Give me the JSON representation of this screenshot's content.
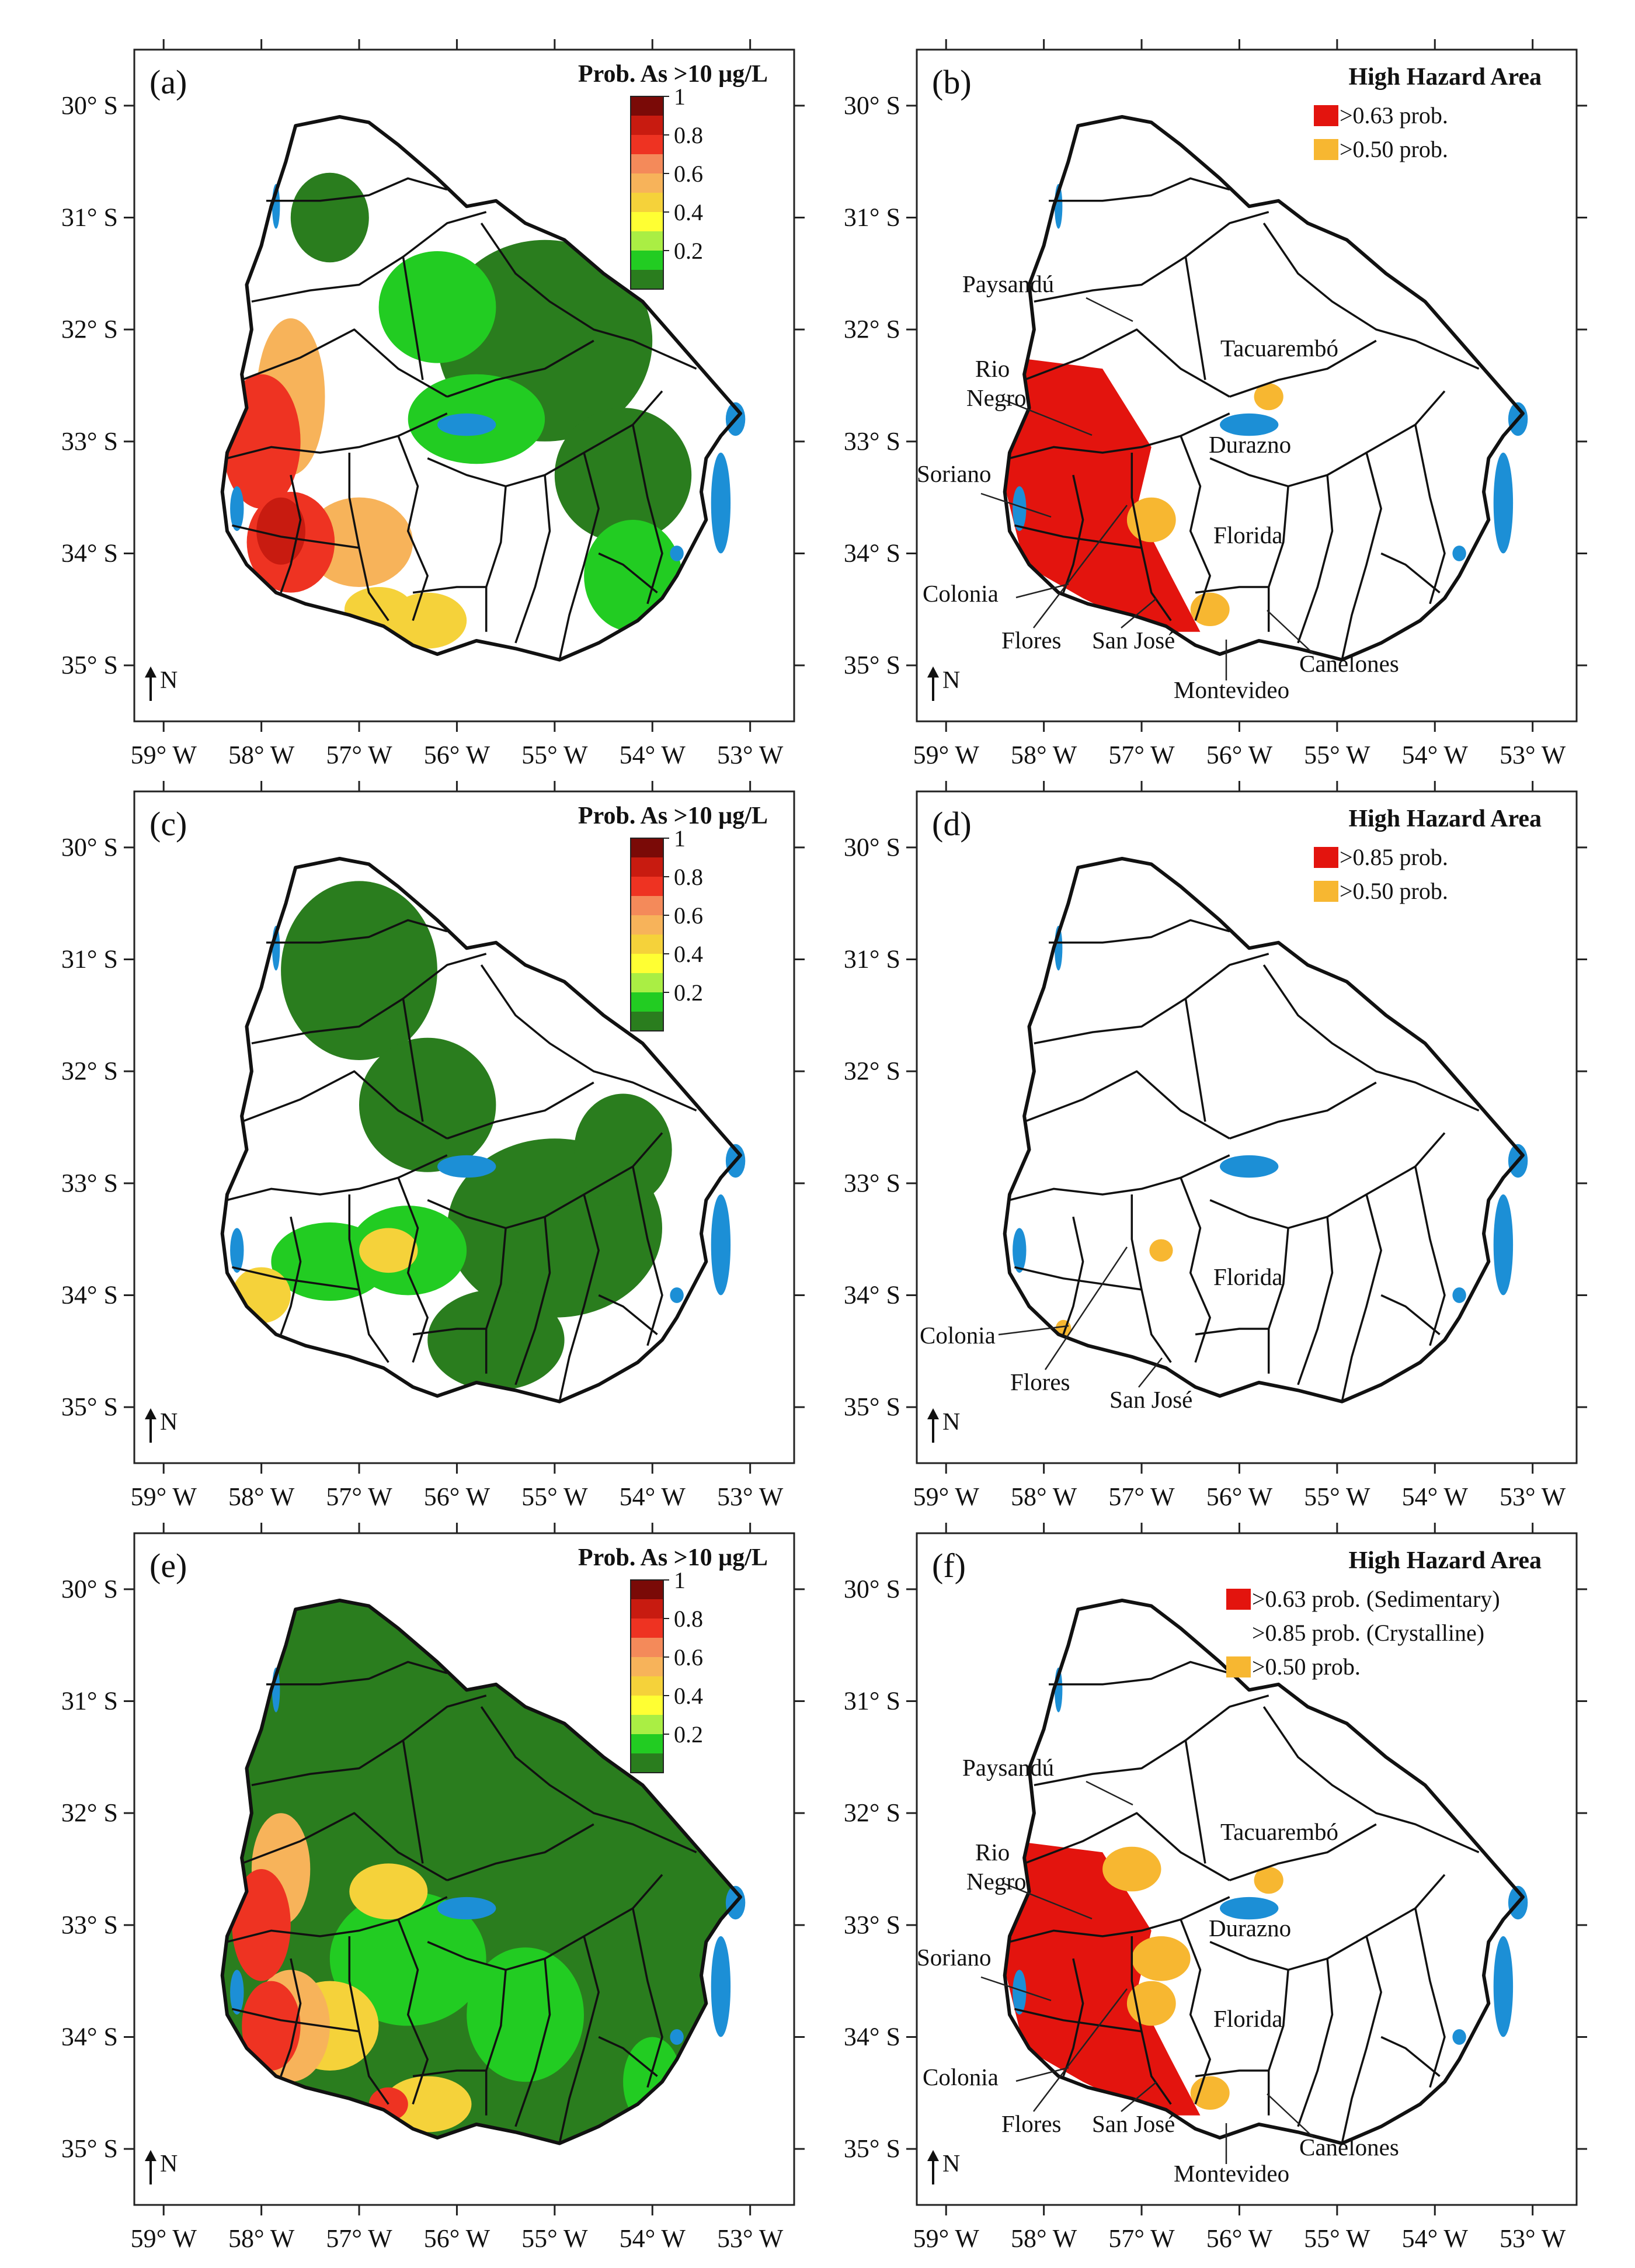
{
  "figure": {
    "lat_labels": [
      "30° S",
      "31° S",
      "32° S",
      "33° S",
      "34° S",
      "35° S"
    ],
    "lon_labels": [
      "59° W",
      "58° W",
      "57° W",
      "56° W",
      "55° W",
      "54° W",
      "53° W"
    ],
    "north_label": "N"
  },
  "colors": {
    "high_red": "#e3140e",
    "moderate_orange": "#f7b731",
    "dark_green": "#2a7d1e",
    "water": "#1c8fd6"
  },
  "panels": [
    {
      "label": "(a)",
      "kind": "probability",
      "legend_title": "Prob. As >10 µg/L",
      "legend_ticks": [
        "1",
        "0.8",
        "0.6",
        "0.4",
        "0.2"
      ],
      "legend_colors": [
        "#7a0a07",
        "#c81b10",
        "#ee3322",
        "#f48a5a",
        "#f7b35a",
        "#f5d23a",
        "#ffff33",
        "#aaee44",
        "#22cc22",
        "#2a7d1e"
      ]
    },
    {
      "label": "(b)",
      "kind": "hazard",
      "legend_title": "High Hazard Area",
      "legend_items": [
        {
          "color": "#e3140e",
          "text": ">0.63 prob."
        },
        {
          "color": "#f7b731",
          "text": ">0.50 prob."
        }
      ],
      "cities": [
        "Paysandú",
        "Tacuarembó",
        "Rio",
        "Negro",
        "Durazno",
        "Soriano",
        "Florida",
        "Colonia",
        "Flores",
        "San José",
        "Canelones",
        "Montevideo"
      ]
    },
    {
      "label": "(c)",
      "kind": "probability",
      "legend_title": "Prob. As >10 µg/L",
      "legend_ticks": [
        "1",
        "0.8",
        "0.6",
        "0.4",
        "0.2"
      ],
      "legend_colors": [
        "#7a0a07",
        "#c81b10",
        "#ee3322",
        "#f48a5a",
        "#f7b35a",
        "#f5d23a",
        "#ffff33",
        "#aaee44",
        "#22cc22",
        "#2a7d1e"
      ]
    },
    {
      "label": "(d)",
      "kind": "hazard",
      "legend_title": "High Hazard Area",
      "legend_items": [
        {
          "color": "#e3140e",
          "text": ">0.85 prob."
        },
        {
          "color": "#f7b731",
          "text": ">0.50 prob."
        }
      ],
      "cities": [
        "Florida",
        "Colonia",
        "Flores",
        "San José"
      ]
    },
    {
      "label": "(e)",
      "kind": "probability",
      "legend_title": "Prob. As >10 µg/L",
      "legend_ticks": [
        "1",
        "0.8",
        "0.6",
        "0.4",
        "0.2"
      ],
      "legend_colors": [
        "#7a0a07",
        "#c81b10",
        "#ee3322",
        "#f48a5a",
        "#f7b35a",
        "#f5d23a",
        "#ffff33",
        "#aaee44",
        "#22cc22",
        "#2a7d1e"
      ]
    },
    {
      "label": "(f)",
      "kind": "hazard",
      "legend_title": "High Hazard Area",
      "legend_items": [
        {
          "color": "#e3140e",
          "text": ">0.63 prob. (Sedimentary)"
        },
        {
          "color": "",
          "text": ">0.85 prob. (Crystalline)"
        },
        {
          "color": "#f7b731",
          "text": ">0.50 prob."
        }
      ],
      "cities": [
        "Paysandú",
        "Tacuarembó",
        "Rio",
        "Negro",
        "Durazno",
        "Soriano",
        "Florida",
        "Colonia",
        "Flores",
        "San José",
        "Canelones",
        "Montevideo"
      ]
    }
  ]
}
